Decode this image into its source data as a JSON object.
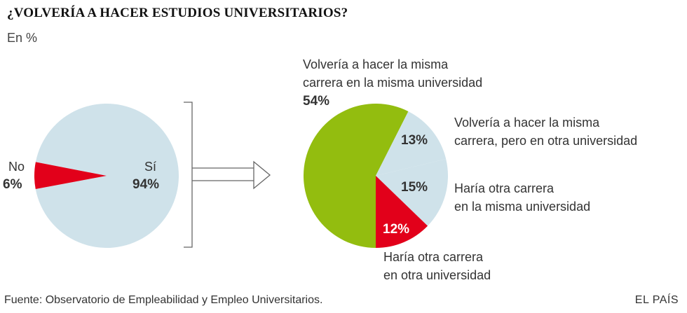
{
  "title": "¿VOLVERÍA A HACER ESTUDIOS UNIVERSITARIOS?",
  "subtitle": "En %",
  "source": "Fuente: Observatorio de Empleabilidad y Empleo Universitarios.",
  "brand": "EL PAÍS",
  "colors": {
    "light_blue": "#cfe2ea",
    "red": "#e2001a",
    "green": "#93bd0f",
    "line": "#666666"
  },
  "chart_data": [
    {
      "type": "pie",
      "slices": [
        {
          "label": "Sí",
          "pct_label": "94%",
          "value": 94,
          "color": "#cfe2ea"
        },
        {
          "label": "No",
          "pct_label": "6%",
          "value": 6,
          "color": "#e2001a"
        }
      ]
    },
    {
      "type": "pie",
      "slices": [
        {
          "label_lines": [
            "Volvería a hacer la misma",
            "carrera en la misma universidad"
          ],
          "pct_label": "54%",
          "value": 54,
          "color": "#93bd0f"
        },
        {
          "label_lines": [
            "Volvería a hacer la misma",
            "carrera, pero en otra universidad"
          ],
          "pct_label": "13%",
          "value": 13,
          "color": "#cfe2ea"
        },
        {
          "label_lines": [
            "Haría otra carrera",
            "en la misma universidad"
          ],
          "pct_label": "15%",
          "value": 15,
          "color": "#cfe2ea"
        },
        {
          "label_lines": [
            "Haría otra carrera",
            "en otra universidad"
          ],
          "pct_label": "12%",
          "value": 12,
          "color": "#e2001a"
        }
      ]
    }
  ]
}
